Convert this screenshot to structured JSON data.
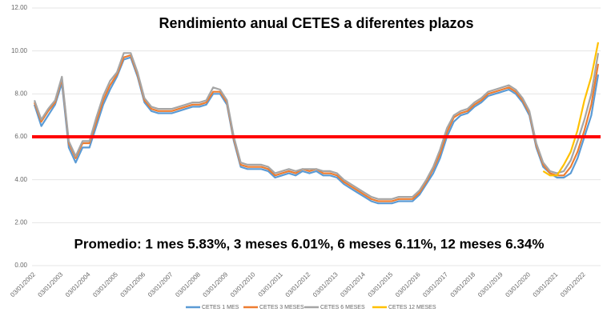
{
  "chart_data": {
    "type": "line",
    "title": "Rendimiento anual CETES a diferentes plazos",
    "annotation": "Promedio: 1 mes 5.83%, 3 meses 6.01%, 6 meses 6.11%, 12 meses 6.34%",
    "categories": [
      "03/01/2002",
      null,
      null,
      null,
      "03/01/2003",
      null,
      null,
      null,
      "03/01/2004",
      null,
      null,
      null,
      "03/01/2005",
      null,
      null,
      null,
      "03/01/2006",
      null,
      null,
      null,
      "03/01/2007",
      null,
      null,
      null,
      "03/01/2008",
      null,
      null,
      null,
      "03/01/2009",
      null,
      null,
      null,
      "03/01/2010",
      null,
      null,
      null,
      "03/01/2011",
      null,
      null,
      null,
      "03/01/2012",
      null,
      null,
      null,
      "03/01/2013",
      null,
      null,
      null,
      "03/01/2014",
      null,
      null,
      null,
      "03/01/2015",
      null,
      null,
      null,
      "03/01/2016",
      null,
      null,
      null,
      "03/01/2017",
      null,
      null,
      null,
      "03/01/2018",
      null,
      null,
      null,
      "03/01/2019",
      null,
      null,
      null,
      "03/01/2020",
      null,
      null,
      null,
      "03/01/2021",
      null,
      null,
      null,
      "03/01/2022",
      null,
      null
    ],
    "series": [
      {
        "name": "CETES 1 MES",
        "color": "#5b9bd5",
        "values": [
          7.5,
          6.5,
          7.0,
          7.5,
          8.5,
          5.5,
          4.8,
          5.5,
          5.5,
          6.5,
          7.5,
          8.2,
          8.8,
          9.6,
          9.7,
          8.8,
          7.6,
          7.2,
          7.1,
          7.1,
          7.1,
          7.2,
          7.3,
          7.4,
          7.4,
          7.5,
          8.0,
          8.0,
          7.5,
          5.8,
          4.6,
          4.5,
          4.5,
          4.5,
          4.4,
          4.1,
          4.2,
          4.3,
          4.2,
          4.4,
          4.3,
          4.4,
          4.2,
          4.2,
          4.1,
          3.8,
          3.6,
          3.4,
          3.2,
          3.0,
          2.9,
          2.9,
          2.9,
          3.0,
          3.0,
          3.0,
          3.3,
          3.8,
          4.3,
          5.0,
          6.0,
          6.7,
          7.0,
          7.1,
          7.4,
          7.6,
          7.9,
          8.0,
          8.1,
          8.2,
          8.0,
          7.6,
          7.0,
          5.5,
          4.6,
          4.3,
          4.1,
          4.1,
          4.3,
          5.0,
          6.0,
          7.0,
          8.9
        ]
      },
      {
        "name": "CETES 3 MESES",
        "color": "#ed7d31",
        "values": [
          7.6,
          6.7,
          7.2,
          7.6,
          8.7,
          5.7,
          5.0,
          5.7,
          5.7,
          6.7,
          7.7,
          8.4,
          8.9,
          9.7,
          9.8,
          8.9,
          7.7,
          7.3,
          7.2,
          7.2,
          7.2,
          7.3,
          7.4,
          7.5,
          7.5,
          7.6,
          8.1,
          8.1,
          7.6,
          5.9,
          4.7,
          4.6,
          4.6,
          4.6,
          4.5,
          4.2,
          4.3,
          4.4,
          4.3,
          4.5,
          4.4,
          4.5,
          4.3,
          4.3,
          4.2,
          3.9,
          3.7,
          3.5,
          3.3,
          3.1,
          3.0,
          3.0,
          3.0,
          3.1,
          3.1,
          3.1,
          3.4,
          3.9,
          4.5,
          5.2,
          6.2,
          6.9,
          7.1,
          7.2,
          7.5,
          7.7,
          8.0,
          8.1,
          8.2,
          8.3,
          8.1,
          7.7,
          7.1,
          5.6,
          4.7,
          4.3,
          4.2,
          4.2,
          4.6,
          5.3,
          6.3,
          7.5,
          9.4
        ]
      },
      {
        "name": "CETES 6 MESES",
        "color": "#a5a5a5",
        "values": [
          7.7,
          6.8,
          7.3,
          7.7,
          8.8,
          5.8,
          5.1,
          5.8,
          5.8,
          6.9,
          7.9,
          8.6,
          9.0,
          9.9,
          9.9,
          9.0,
          7.8,
          7.4,
          7.3,
          7.3,
          7.3,
          7.4,
          7.5,
          7.6,
          7.6,
          7.7,
          8.3,
          8.2,
          7.7,
          6.0,
          4.8,
          4.7,
          4.7,
          4.7,
          4.6,
          4.3,
          4.4,
          4.5,
          4.4,
          4.5,
          4.5,
          4.5,
          4.4,
          4.4,
          4.3,
          4.0,
          3.8,
          3.6,
          3.4,
          3.2,
          3.1,
          3.1,
          3.1,
          3.2,
          3.2,
          3.2,
          3.5,
          4.0,
          4.6,
          5.4,
          6.4,
          7.0,
          7.2,
          7.3,
          7.6,
          7.8,
          8.1,
          8.2,
          8.3,
          8.4,
          8.2,
          7.8,
          7.2,
          5.7,
          4.8,
          4.4,
          4.3,
          4.4,
          4.9,
          5.8,
          6.8,
          8.0,
          9.9
        ]
      },
      {
        "name": "CETES 12 MESES",
        "color": "#ffc000",
        "values": [
          null,
          null,
          null,
          null,
          null,
          null,
          null,
          null,
          null,
          null,
          null,
          null,
          null,
          null,
          null,
          null,
          null,
          null,
          null,
          null,
          null,
          null,
          null,
          null,
          null,
          null,
          null,
          null,
          null,
          null,
          null,
          null,
          null,
          null,
          null,
          null,
          null,
          null,
          null,
          null,
          null,
          null,
          null,
          null,
          null,
          null,
          null,
          null,
          null,
          null,
          null,
          null,
          null,
          null,
          null,
          null,
          null,
          null,
          null,
          null,
          null,
          null,
          null,
          null,
          null,
          null,
          null,
          null,
          null,
          null,
          null,
          null,
          null,
          null,
          4.4,
          4.2,
          4.2,
          4.7,
          5.3,
          6.3,
          7.7,
          8.8,
          10.4
        ]
      }
    ],
    "ylim": [
      0,
      12
    ],
    "yticks": [
      {
        "value": 0,
        "label": "0.00"
      },
      {
        "value": 2,
        "label": "2.00"
      },
      {
        "value": 4,
        "label": "4.00"
      },
      {
        "value": 6,
        "label": "6.00"
      },
      {
        "value": 8,
        "label": "8.00"
      },
      {
        "value": 10,
        "label": "10.00"
      },
      {
        "value": 12,
        "label": "12.00"
      }
    ],
    "grid": true,
    "reference_line": {
      "value": 6,
      "color": "#ff0000"
    },
    "legend": "bottom"
  }
}
